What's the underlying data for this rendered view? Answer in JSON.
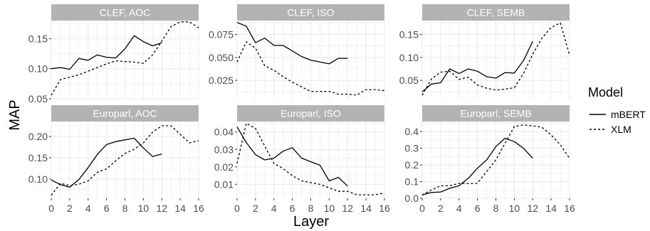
{
  "figure": {
    "xlabel": "Layer",
    "ylabel": "MAP",
    "legend": {
      "title": "Model",
      "placement": "right",
      "items": [
        {
          "name": "mBERT",
          "dash": "solid"
        },
        {
          "name": "XLM",
          "dash": "dotted"
        }
      ]
    },
    "colors": {
      "strip_bg": "#b3b3b3",
      "strip_text": "#ffffff",
      "panel_bg": "#ffffff",
      "grid": "#ebebeb",
      "line": "#000000",
      "tick_text": "#4d4d4d"
    },
    "x_ticks": [
      "0",
      "2",
      "4",
      "6",
      "8",
      "10",
      "12",
      "14",
      "16"
    ]
  },
  "chart_data": [
    {
      "type": "line",
      "title": "CLEF, AOC",
      "row": 0,
      "col": 0,
      "xlim": [
        0,
        16
      ],
      "ylim": [
        0.05,
        0.18
      ],
      "y_ticks": [
        0.05,
        0.1,
        0.15
      ],
      "y_tick_labels": [
        "0.05",
        "0.10",
        "0.15"
      ],
      "series": [
        {
          "name": "mBERT",
          "x": [
            0,
            1,
            2,
            3,
            4,
            5,
            6,
            7,
            8,
            9,
            10,
            11,
            12
          ],
          "values": [
            0.1,
            0.102,
            0.099,
            0.117,
            0.114,
            0.123,
            0.119,
            0.118,
            0.133,
            0.155,
            0.145,
            0.138,
            0.143
          ]
        },
        {
          "name": "XLM",
          "x": [
            0,
            1,
            2,
            3,
            4,
            5,
            6,
            7,
            8,
            9,
            10,
            11,
            12,
            13,
            14,
            15,
            16
          ],
          "values": [
            0.056,
            0.082,
            0.086,
            0.09,
            0.096,
            0.102,
            0.108,
            0.113,
            0.112,
            0.111,
            0.109,
            0.123,
            0.146,
            0.17,
            0.178,
            0.178,
            0.168
          ]
        }
      ]
    },
    {
      "type": "line",
      "title": "CLEF, ISO",
      "row": 0,
      "col": 1,
      "xlim": [
        0,
        16
      ],
      "ylim": [
        0.005,
        0.09
      ],
      "y_ticks": [
        0.025,
        0.05,
        0.075
      ],
      "y_tick_labels": [
        "0.025",
        "0.050",
        "0.075"
      ],
      "series": [
        {
          "name": "mBERT",
          "x": [
            0,
            1,
            2,
            3,
            4,
            5,
            6,
            7,
            8,
            9,
            10,
            11,
            12
          ],
          "values": [
            0.088,
            0.084,
            0.066,
            0.071,
            0.063,
            0.063,
            0.057,
            0.051,
            0.047,
            0.045,
            0.043,
            0.049,
            0.049
          ]
        },
        {
          "name": "XLM",
          "x": [
            0,
            1,
            2,
            3,
            4,
            5,
            6,
            7,
            8,
            9,
            10,
            11,
            12,
            13,
            14,
            15,
            16
          ],
          "values": [
            0.045,
            0.067,
            0.06,
            0.041,
            0.036,
            0.029,
            0.023,
            0.018,
            0.013,
            0.013,
            0.013,
            0.01,
            0.01,
            0.009,
            0.015,
            0.015,
            0.014
          ]
        }
      ]
    },
    {
      "type": "line",
      "title": "CLEF, SEMB",
      "row": 0,
      "col": 2,
      "xlim": [
        0,
        16
      ],
      "ylim": [
        0.01,
        0.18
      ],
      "y_ticks": [
        0.05,
        0.1,
        0.15
      ],
      "y_tick_labels": [
        "0.05",
        "0.10",
        "0.15"
      ],
      "series": [
        {
          "name": "mBERT",
          "x": [
            0,
            1,
            2,
            3,
            4,
            5,
            6,
            7,
            8,
            9,
            10,
            11,
            12
          ],
          "values": [
            0.025,
            0.042,
            0.045,
            0.075,
            0.065,
            0.075,
            0.07,
            0.058,
            0.055,
            0.067,
            0.066,
            0.093,
            0.135
          ]
        },
        {
          "name": "XLM",
          "x": [
            0,
            1,
            2,
            3,
            4,
            5,
            6,
            7,
            8,
            9,
            10,
            11,
            12,
            13,
            14,
            15,
            16
          ],
          "values": [
            0.018,
            0.053,
            0.068,
            0.07,
            0.052,
            0.057,
            0.04,
            0.033,
            0.029,
            0.031,
            0.034,
            0.065,
            0.107,
            0.142,
            0.165,
            0.175,
            0.105
          ]
        }
      ]
    },
    {
      "type": "line",
      "title": "Europarl, AOC",
      "row": 1,
      "col": 0,
      "xlim": [
        0,
        16
      ],
      "ylim": [
        0.055,
        0.235
      ],
      "y_ticks": [
        0.1,
        0.15,
        0.2
      ],
      "y_tick_labels": [
        "0.10",
        "0.15",
        "0.20"
      ],
      "series": [
        {
          "name": "mBERT",
          "x": [
            0,
            1,
            2,
            3,
            4,
            5,
            6,
            7,
            8,
            9,
            10,
            11,
            12
          ],
          "values": [
            0.098,
            0.087,
            0.081,
            0.099,
            0.127,
            0.158,
            0.181,
            0.188,
            0.192,
            0.196,
            0.173,
            0.153,
            0.159
          ]
        },
        {
          "name": "XLM",
          "x": [
            0,
            1,
            2,
            3,
            4,
            5,
            6,
            7,
            8,
            9,
            10,
            11,
            12,
            13,
            14,
            15,
            16
          ],
          "values": [
            0.062,
            0.09,
            0.085,
            0.088,
            0.096,
            0.116,
            0.124,
            0.143,
            0.16,
            0.17,
            0.185,
            0.21,
            0.225,
            0.225,
            0.205,
            0.185,
            0.19
          ]
        }
      ]
    },
    {
      "type": "line",
      "title": "Europarl, ISO",
      "row": 1,
      "col": 1,
      "xlim": [
        0,
        16
      ],
      "ylim": [
        0.002,
        0.046
      ],
      "y_ticks": [
        0.01,
        0.02,
        0.03,
        0.04
      ],
      "y_tick_labels": [
        "0.01",
        "0.02",
        "0.03",
        "0.04"
      ],
      "series": [
        {
          "name": "mBERT",
          "x": [
            0,
            1,
            2,
            3,
            4,
            5,
            6,
            7,
            8,
            9,
            10,
            11,
            12
          ],
          "values": [
            0.043,
            0.034,
            0.027,
            0.024,
            0.025,
            0.029,
            0.031,
            0.025,
            0.023,
            0.021,
            0.012,
            0.014,
            0.009
          ]
        },
        {
          "name": "XLM",
          "x": [
            0,
            1,
            2,
            3,
            4,
            5,
            6,
            7,
            8,
            9,
            10,
            11,
            12,
            13,
            14,
            15,
            16
          ],
          "values": [
            0.022,
            0.045,
            0.042,
            0.032,
            0.022,
            0.019,
            0.015,
            0.012,
            0.011,
            0.01,
            0.008,
            0.006,
            0.006,
            0.004,
            0.004,
            0.004,
            0.005
          ]
        }
      ]
    },
    {
      "type": "line",
      "title": "Europarl, SEMB",
      "row": 1,
      "col": 2,
      "xlim": [
        0,
        16
      ],
      "ylim": [
        0.0,
        0.46
      ],
      "y_ticks": [
        0.0,
        0.1,
        0.2,
        0.3,
        0.4
      ],
      "y_tick_labels": [
        "0.0",
        "0.1",
        "0.2",
        "0.3",
        "0.4"
      ],
      "series": [
        {
          "name": "mBERT",
          "x": [
            0,
            1,
            2,
            3,
            4,
            5,
            6,
            7,
            8,
            9,
            10,
            11,
            12
          ],
          "values": [
            0.02,
            0.035,
            0.038,
            0.06,
            0.075,
            0.12,
            0.18,
            0.23,
            0.31,
            0.36,
            0.34,
            0.3,
            0.24
          ]
        },
        {
          "name": "XLM",
          "x": [
            0,
            1,
            2,
            3,
            4,
            5,
            6,
            7,
            8,
            9,
            10,
            11,
            12,
            13,
            14,
            15,
            16
          ],
          "values": [
            0.02,
            0.05,
            0.075,
            0.075,
            0.09,
            0.088,
            0.09,
            0.16,
            0.23,
            0.33,
            0.43,
            0.44,
            0.435,
            0.425,
            0.38,
            0.32,
            0.24
          ]
        }
      ]
    }
  ]
}
